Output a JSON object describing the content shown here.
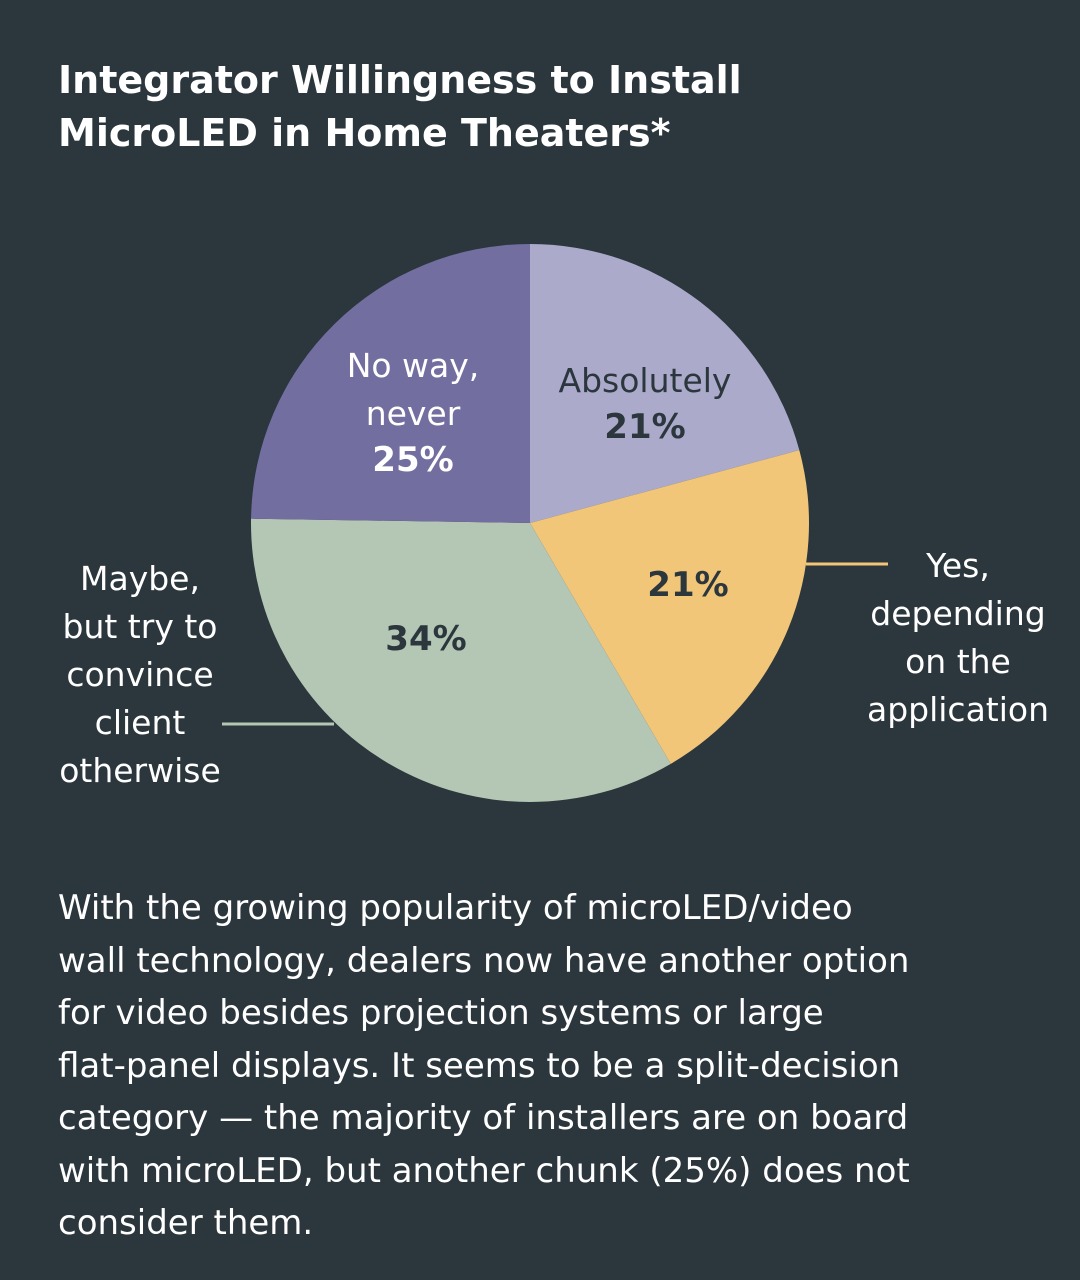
{
  "title_lines": [
    "Integrator Willingness to Install",
    "MicroLED in Home Theaters*"
  ],
  "chart_data": {
    "type": "pie",
    "start_angle_deg": 0,
    "direction": "clockwise",
    "slices": [
      {
        "label": "Absolutely",
        "label_lines": [
          "Absolutely"
        ],
        "value": 21,
        "value_label": "21%",
        "color": "#abaacb",
        "label_color": "#2b363d"
      },
      {
        "label": "Yes, depending on the application",
        "label_lines": [
          "Yes,",
          "depending",
          "on the",
          "application"
        ],
        "value": 21,
        "value_label": "21%",
        "color": "#f1c678",
        "label_color": "#2b363d",
        "label_position": "outside-right",
        "leader_color": "#f1c678"
      },
      {
        "label": "Maybe, but try to convince client otherwise",
        "label_lines": [
          "Maybe,",
          "but try to",
          "convince",
          "client",
          "otherwise"
        ],
        "value": 34,
        "value_label": "34%",
        "color": "#b4c6b4",
        "label_color": "#2b363d",
        "label_position": "outside-left",
        "leader_color": "#b4c6b4"
      },
      {
        "label": "No way, never",
        "label_lines": [
          "No way,",
          "never"
        ],
        "value": 25,
        "value_label": "25%",
        "color": "#726ea0",
        "label_color": "#ffffff"
      }
    ]
  },
  "caption_lines": [
    "With the growing popularity of microLED/video",
    "wall technology, dealers now have another option",
    "for video besides projection systems or large",
    "flat-panel displays. It seems to be a split-decision",
    "category — the majority of installers are on board",
    "with microLED, but another chunk (25%) does not",
    "consider them."
  ]
}
